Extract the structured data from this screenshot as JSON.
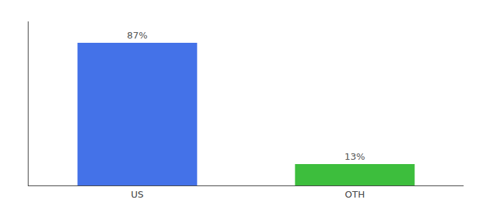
{
  "chart_data": {
    "type": "bar",
    "categories": [
      "US",
      "OTH"
    ],
    "values": [
      87,
      13
    ],
    "value_labels": [
      "87%",
      "13%"
    ],
    "colors": [
      "#4472e8",
      "#3dbe3d"
    ],
    "ylim": [
      0,
      100
    ],
    "data_labels": true,
    "tick_labels": "x",
    "grid": false
  }
}
